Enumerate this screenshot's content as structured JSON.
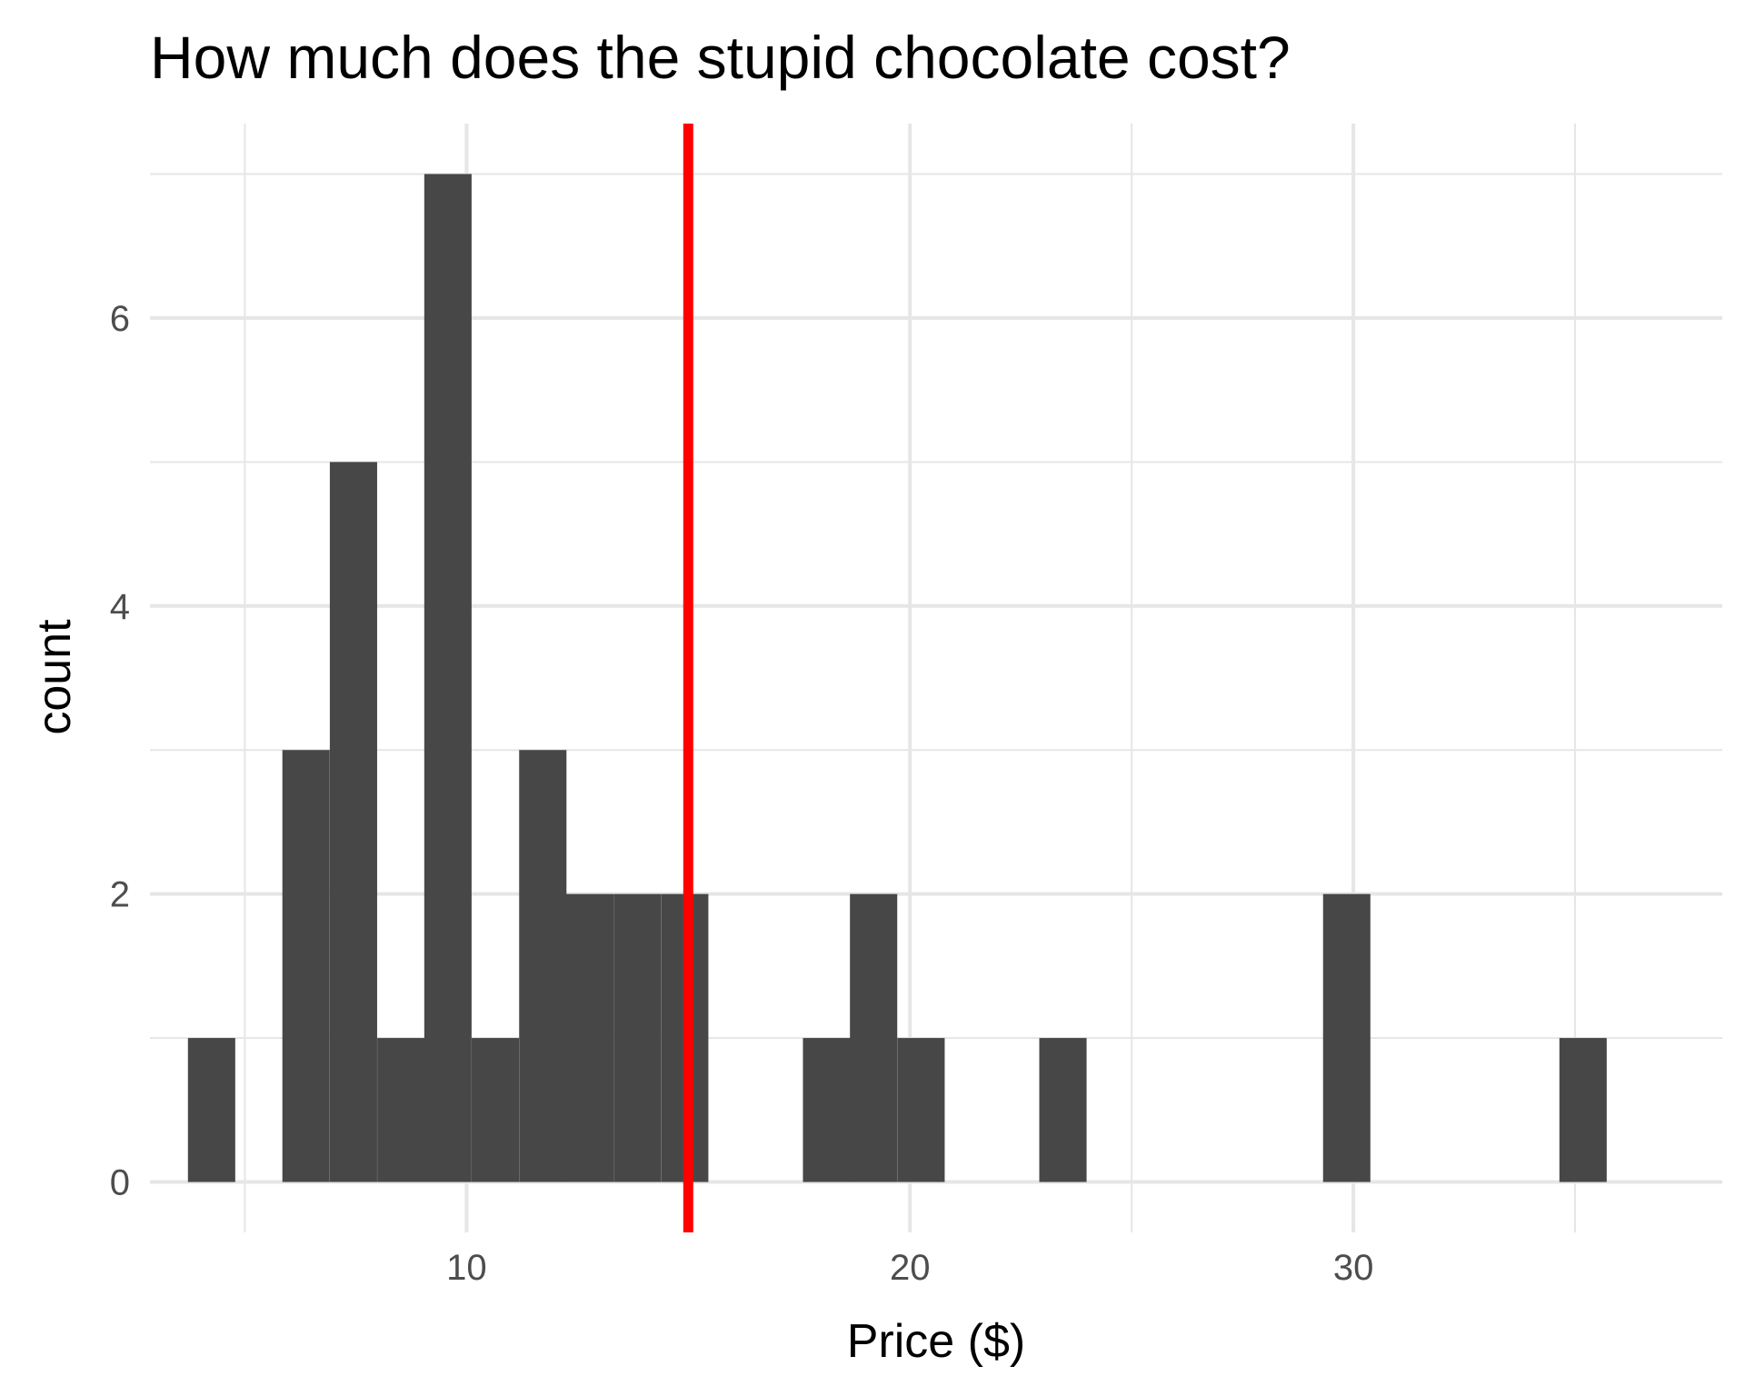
{
  "chart_data": {
    "type": "bar",
    "title": "How much does the stupid chocolate cost?",
    "xlabel": "Price ($)",
    "ylabel": "count",
    "xlim": [
      2.86,
      38.32
    ],
    "ylim": [
      -0.35,
      7.35
    ],
    "x_ticks": [
      10,
      20,
      30
    ],
    "y_ticks": [
      0,
      2,
      4,
      6
    ],
    "minor_x_gridlines": [
      5,
      15,
      25,
      35
    ],
    "minor_y_gridlines": [
      1,
      3,
      5,
      7
    ],
    "grid": true,
    "bin_width": 1.067,
    "bins": [
      {
        "x": 4.25,
        "count": 1
      },
      {
        "x": 6.38,
        "count": 3
      },
      {
        "x": 7.45,
        "count": 5
      },
      {
        "x": 8.52,
        "count": 1
      },
      {
        "x": 9.58,
        "count": 7
      },
      {
        "x": 10.65,
        "count": 1
      },
      {
        "x": 11.72,
        "count": 3
      },
      {
        "x": 12.78,
        "count": 2
      },
      {
        "x": 13.85,
        "count": 2
      },
      {
        "x": 14.92,
        "count": 2
      },
      {
        "x": 18.12,
        "count": 1
      },
      {
        "x": 19.18,
        "count": 2
      },
      {
        "x": 20.25,
        "count": 1
      },
      {
        "x": 23.45,
        "count": 1
      },
      {
        "x": 29.85,
        "count": 2
      },
      {
        "x": 35.18,
        "count": 1
      }
    ],
    "reference_line": {
      "x": 15.0,
      "color": "#ff0000"
    },
    "bar_color": "#474747",
    "grid_color": "#e6e6e6"
  }
}
